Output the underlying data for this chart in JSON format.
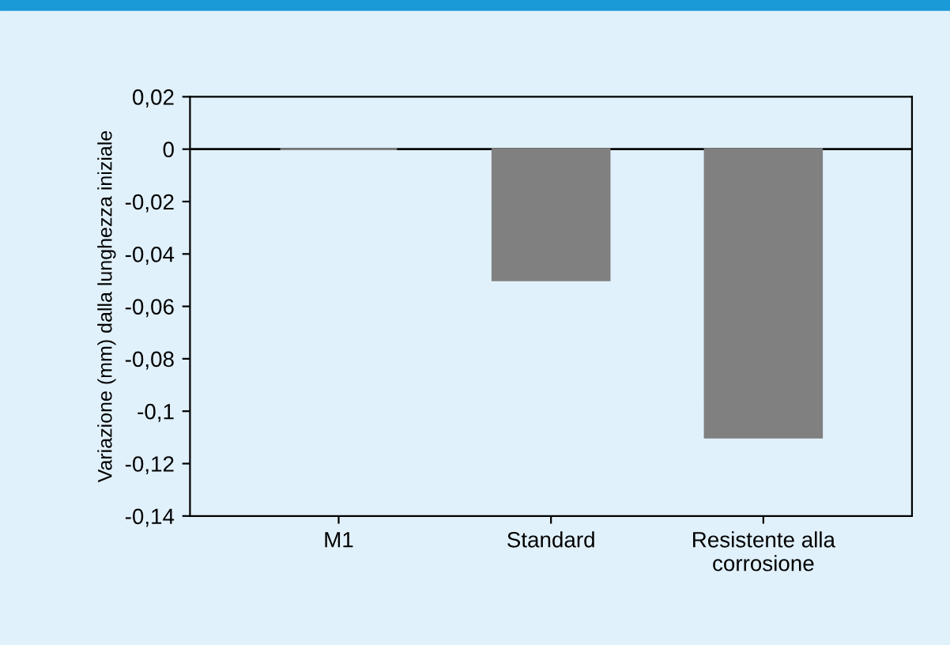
{
  "chart_data": {
    "type": "bar",
    "ylabel": "Variazione (mm) dalla lunghezza iniziale",
    "categories": [
      "M1",
      "Standard",
      "Resistente alla\ncorrosione"
    ],
    "values": [
      0,
      -0.05,
      -0.11
    ],
    "color": "#808080",
    "ylim": [
      -0.14,
      0.02
    ],
    "yticks": [
      {
        "value": -0.14,
        "label": "-0,14"
      },
      {
        "value": -0.12,
        "label": "-0,12"
      },
      {
        "value": -0.1,
        "label": "-0,1"
      },
      {
        "value": -0.08,
        "label": "-0,08"
      },
      {
        "value": -0.06,
        "label": "-0,06"
      },
      {
        "value": -0.04,
        "label": "-0,04"
      },
      {
        "value": -0.02,
        "label": "-0,02"
      },
      0,
      {
        "value": 0.02,
        "label": "0,02"
      }
    ],
    "ref_lines": [
      {
        "axis": "y",
        "value": 0,
        "color": "#000000"
      }
    ],
    "grid": false,
    "legend": false
  }
}
